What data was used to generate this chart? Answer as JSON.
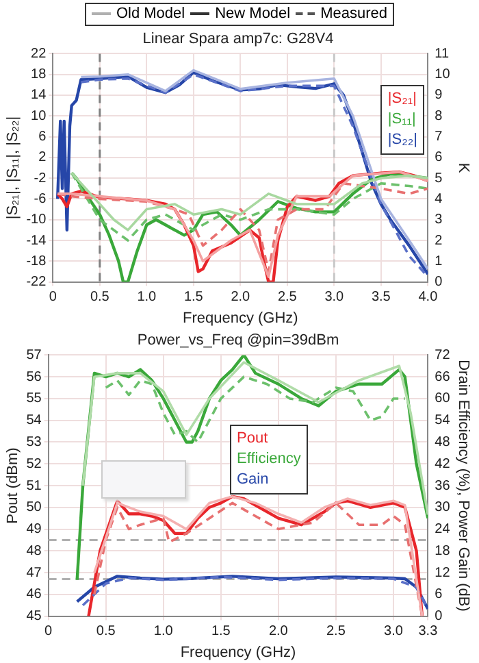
{
  "chart_data": [
    {
      "type": "line",
      "title": "Linear Spara amp7c: G28V4",
      "xlabel": "Frequency (GHz)",
      "ylabel": "|S₂₁|, |S₁₁|, |S₂₂|",
      "y2label": "K",
      "annotations": [
        "Old Model",
        "New Model",
        "Measured"
      ],
      "xlim": [
        0,
        4
      ],
      "xticks": [
        0,
        0.5,
        {
          "value": 1,
          "label": "1.0"
        },
        1.5,
        {
          "value": 2,
          "label": "2.0"
        },
        2.5,
        {
          "value": 3,
          "label": "3.0"
        },
        3.5,
        {
          "value": 4,
          "label": "4.0"
        }
      ],
      "ylim": [
        -22,
        22
      ],
      "yticks": [
        -22,
        -18,
        -14,
        -10,
        -6,
        -2,
        2,
        6,
        10,
        14,
        18,
        22
      ],
      "y2lim": [
        0,
        11
      ],
      "y2ticks": [
        0,
        1,
        2,
        3,
        4,
        5,
        6,
        7,
        8,
        9,
        10,
        11
      ],
      "grid": true,
      "legend": "top right",
      "marker": "none",
      "ref_lines": [
        {
          "axis": "x",
          "value": 0.5,
          "color": "#808080",
          "line_style": "dashed"
        },
        {
          "axis": "x",
          "value": 3,
          "color": "#c8c8c8",
          "line_style": "dashed"
        }
      ],
      "series": [
        {
          "color": "#a8d8a0",
          "line_style": "solid",
          "x": [
            0.2,
            0.35,
            0.5,
            0.65,
            0.8,
            1.0,
            1.3,
            1.5,
            1.8,
            2.0,
            2.3,
            2.6,
            3.0,
            3.3,
            3.5,
            3.8,
            4.0
          ],
          "values": [
            -1,
            -4,
            -7,
            -10,
            -12,
            -8,
            -7,
            -9,
            -8,
            -9,
            -5,
            -7,
            -7,
            -3,
            -2,
            -1.5,
            -2
          ]
        },
        {
          "color": "#f4a0a0",
          "line_style": "solid",
          "x": [
            0.05,
            0.2,
            0.5,
            1.0,
            1.3,
            1.5,
            1.6,
            1.9,
            2.1,
            2.3,
            2.4,
            2.6,
            2.95,
            3.2,
            3.7,
            4.0
          ],
          "values": [
            -5,
            -5,
            -5.5,
            -6.3,
            -8,
            -14,
            -18,
            -14,
            -12,
            -21,
            -13,
            -5.5,
            -5.5,
            -1.5,
            -0.8,
            -2.5
          ]
        },
        {
          "color": "#a8b4e0",
          "line_style": "solid",
          "x": [
            0.3,
            0.5,
            0.8,
            1.2,
            1.5,
            2.0,
            2.5,
            3.0,
            3.2,
            3.5,
            3.8,
            4.0
          ],
          "values": [
            17.5,
            17.6,
            18,
            14.8,
            18.8,
            15.2,
            16.4,
            17.2,
            10,
            -6,
            -14,
            -19.5
          ]
        },
        {
          "color": "#e87070",
          "line_style": "dashed",
          "x": [
            0.05,
            0.2,
            0.5,
            1.0,
            1.3,
            1.45,
            1.6,
            1.8,
            2.0,
            2.2,
            2.3,
            2.4,
            2.6,
            2.9,
            3.1,
            3.5,
            3.8,
            4.0
          ],
          "values": [
            -5,
            -5.5,
            -6,
            -6.5,
            -8,
            -9,
            -15,
            -12,
            -8,
            -12,
            -20,
            -10,
            -8,
            -8,
            -3,
            -4,
            -5,
            -4
          ]
        },
        {
          "color": "#6cc06c",
          "line_style": "dashed",
          "x": [
            0.2,
            0.5,
            0.8,
            1.0,
            1.2,
            1.5,
            1.8,
            2.0,
            2.3,
            2.6,
            3.0,
            3.2,
            3.5,
            3.8,
            4.0
          ],
          "values": [
            -1,
            -10,
            -14,
            -10,
            -9,
            -12,
            -9,
            -10,
            -8,
            -8,
            -9,
            -6,
            -3,
            -3.5,
            -4
          ]
        },
        {
          "color": "#5a70c8",
          "line_style": "dashed",
          "x": [
            0.3,
            0.5,
            0.8,
            1.2,
            1.5,
            2.0,
            2.5,
            3.0,
            3.2,
            3.5,
            3.8,
            4.0
          ],
          "values": [
            16.5,
            17,
            17.2,
            14.5,
            18,
            14.8,
            15.8,
            15.8,
            8,
            -7,
            -17,
            -21
          ]
        },
        {
          "name": "|S₂₁|",
          "color": "#e8262b",
          "line_style": "solid",
          "x": [
            0.05,
            0.1,
            0.15,
            0.2,
            0.3,
            0.5,
            0.8,
            1.0,
            1.2,
            1.3,
            1.4,
            1.5,
            1.55,
            1.6,
            1.7,
            1.9,
            2.1,
            2.2,
            2.25,
            2.3,
            2.35,
            2.4,
            2.5,
            2.6,
            2.8,
            2.95,
            3.05,
            3.2,
            3.5,
            3.7,
            3.85,
            4.0
          ],
          "values": [
            -5,
            -6,
            -7.5,
            -5,
            -4.5,
            -5.7,
            -6,
            -6.3,
            -7,
            -8,
            -11,
            -15,
            -20,
            -19.5,
            -16,
            -14.5,
            -12,
            -13.5,
            -18,
            -22,
            -22,
            -14,
            -7.5,
            -5.5,
            -6.3,
            -5.5,
            -3,
            -1.5,
            -1,
            -0.8,
            -1.5,
            -2.5
          ]
        },
        {
          "name": "|S₁₁|",
          "color": "#3aa83a",
          "line_style": "solid",
          "x": [
            0.2,
            0.25,
            0.35,
            0.5,
            0.6,
            0.7,
            0.75,
            0.8,
            0.9,
            1.0,
            1.1,
            1.2,
            1.4,
            1.5,
            1.6,
            1.75,
            1.9,
            2.0,
            2.2,
            2.4,
            2.6,
            2.8,
            3.0,
            3.2,
            3.4,
            3.6,
            3.8,
            4.0
          ],
          "values": [
            -1,
            -2,
            -5,
            -9,
            -13,
            -18,
            -22,
            -22,
            -16,
            -11,
            -10,
            -11,
            -13,
            -12,
            -9,
            -8.5,
            -11,
            -13,
            -10,
            -6.5,
            -7.8,
            -8.5,
            -8.5,
            -5,
            -2.2,
            -1.2,
            -1.5,
            -2
          ]
        },
        {
          "name": "|S₂₂|",
          "color": "#2646a8",
          "line_style": "solid",
          "x": [
            0.05,
            0.08,
            0.1,
            0.12,
            0.15,
            0.18,
            0.2,
            0.25,
            0.3,
            0.5,
            0.8,
            1.0,
            1.2,
            1.35,
            1.5,
            1.7,
            2.0,
            2.2,
            2.4,
            2.6,
            2.8,
            3.0,
            3.1,
            3.2,
            3.3,
            3.4,
            3.5,
            3.6,
            3.8,
            4.0
          ],
          "values": [
            -6,
            9,
            -4,
            9,
            -12,
            8,
            12,
            13,
            17,
            17.2,
            17.6,
            15.5,
            14.5,
            16,
            18.4,
            16.8,
            15,
            15.2,
            16,
            15.6,
            15.3,
            16.2,
            14,
            9,
            3,
            -3,
            -7,
            -10,
            -15,
            -20.5
          ]
        }
      ]
    },
    {
      "type": "line",
      "title": "Power_vs_Freq @pin=39dBm",
      "xlabel": "Frequency (GHz)",
      "ylabel": "Pout (dBm)",
      "y2label": "Drain Efficiency (%), Power Gain (dB)",
      "xlim": [
        0,
        3.3
      ],
      "xticks": [
        0,
        0.5,
        {
          "value": 1,
          "label": "1.0"
        },
        1.5,
        {
          "value": 2,
          "label": "2.0"
        },
        2.5,
        {
          "value": 3,
          "label": "3.0"
        },
        3.3
      ],
      "ylim": [
        45,
        57
      ],
      "yticks": [
        45,
        46,
        47,
        48,
        49,
        50,
        51,
        52,
        53,
        54,
        55,
        56,
        57
      ],
      "y2lim": [
        0,
        72
      ],
      "y2ticks": [
        0,
        6,
        12,
        18,
        24,
        30,
        36,
        42,
        48,
        54,
        60,
        66,
        72
      ],
      "grid": true,
      "legend": "top",
      "marker": "none",
      "ref_lines": [
        {
          "axis": "y",
          "value": 48.5,
          "color": "#b0b0b0",
          "line_style": "dashed"
        },
        {
          "axis": "y",
          "value": 46.7,
          "color": "#b0b0b0",
          "line_style": "dashed"
        }
      ],
      "series": [
        {
          "color": "#f4b0b0",
          "line_style": "solid",
          "x": [
            0.4,
            0.6,
            0.8,
            1.0,
            1.2,
            1.4,
            1.6,
            1.8,
            2.0,
            2.2,
            2.4,
            2.6,
            2.8,
            3.0,
            3.1,
            3.25
          ],
          "values": [
            47,
            50.2,
            49.8,
            49.6,
            49,
            50.2,
            50.5,
            50.2,
            49.7,
            49.3,
            50,
            50.4,
            50.1,
            50.3,
            50.1,
            45
          ]
        },
        {
          "color": "#b0dca8",
          "line_style": "solid",
          "axis": "y2",
          "x": [
            0.3,
            0.4,
            0.6,
            0.8,
            1.0,
            1.2,
            1.4,
            1.7,
            2.0,
            2.35,
            2.7,
            3.05,
            3.15,
            3.3
          ],
          "values": [
            36,
            66,
            67,
            67,
            62,
            50,
            60,
            70,
            65,
            59,
            65,
            69,
            56,
            28
          ]
        },
        {
          "color": "#e87070",
          "line_style": "dashed",
          "x": [
            0.4,
            0.5,
            0.6,
            0.7,
            0.8,
            1.0,
            1.05,
            1.2,
            1.4,
            1.6,
            1.8,
            2.0,
            2.3,
            2.5,
            2.7,
            2.9,
            3.0,
            3.1,
            3.25
          ],
          "values": [
            46,
            48.5,
            50,
            49,
            49.2,
            49.5,
            48.4,
            48.8,
            49.5,
            50.2,
            49.6,
            49,
            49.3,
            50.2,
            49.2,
            49.2,
            49.6,
            49.2,
            45
          ]
        },
        {
          "color": "#6cc06c",
          "line_style": "dashed",
          "axis": "y2",
          "x": [
            0.5,
            0.6,
            0.7,
            0.8,
            0.9,
            1.0,
            1.1,
            1.2,
            1.3,
            1.4,
            1.5,
            1.7,
            1.9,
            2.1,
            2.3,
            2.5,
            2.65,
            2.8,
            2.9,
            3.0,
            3.1
          ],
          "values": [
            63,
            65,
            61,
            65,
            64,
            56,
            50,
            51,
            48,
            54,
            60,
            66,
            64,
            60,
            59,
            63,
            62,
            54,
            55,
            60,
            60
          ]
        },
        {
          "color": "#5a70c8",
          "line_style": "dashed",
          "axis": "y2",
          "x": [
            0.3,
            0.5,
            0.7,
            1.0,
            1.5,
            2.0,
            2.5,
            3.0,
            3.2,
            3.3
          ],
          "values": [
            3,
            9,
            10.5,
            10,
            10.8,
            10,
            10.5,
            10.3,
            8,
            2
          ]
        },
        {
          "name": "Pout",
          "color": "#e8262b",
          "line_style": "solid",
          "x": [
            0.35,
            0.45,
            0.6,
            0.7,
            0.8,
            0.9,
            1.0,
            1.1,
            1.2,
            1.3,
            1.4,
            1.5,
            1.6,
            1.7,
            1.9,
            2.0,
            2.2,
            2.4,
            2.5,
            2.6,
            2.8,
            3.0,
            3.1,
            3.2,
            3.25
          ],
          "values": [
            45,
            48,
            50.3,
            49.7,
            49.7,
            49.6,
            49.4,
            48.8,
            48.8,
            49.5,
            50,
            50.2,
            50.5,
            50.4,
            49.8,
            49.5,
            49.2,
            49.8,
            50.2,
            50.3,
            50,
            50.2,
            50,
            48,
            45
          ]
        },
        {
          "name": "Efficiency",
          "color": "#3aa83a",
          "line_style": "solid",
          "axis": "y2",
          "x": [
            0.25,
            0.3,
            0.4,
            0.5,
            0.6,
            0.7,
            0.8,
            0.9,
            1.0,
            1.1,
            1.2,
            1.25,
            1.3,
            1.4,
            1.5,
            1.6,
            1.7,
            1.8,
            2.0,
            2.2,
            2.35,
            2.5,
            2.7,
            2.9,
            3.05,
            3.1,
            3.15,
            3.2,
            3.3
          ],
          "values": [
            10,
            36,
            67,
            66,
            67,
            66,
            68,
            65,
            60,
            54,
            48,
            48,
            51,
            60,
            65,
            68,
            72,
            67,
            64,
            60,
            58,
            62,
            64,
            64,
            68,
            66,
            54,
            42,
            27
          ]
        },
        {
          "name": "Gain",
          "color": "#2646a8",
          "line_style": "solid",
          "axis": "y2",
          "x": [
            0.25,
            0.4,
            0.6,
            0.8,
            1.0,
            1.2,
            1.6,
            2.0,
            2.5,
            3.0,
            3.1,
            3.2,
            3.3
          ],
          "values": [
            4,
            8,
            11,
            10.5,
            10.2,
            10.3,
            11,
            10.3,
            10.8,
            10.5,
            10.3,
            8,
            2
          ]
        }
      ]
    }
  ]
}
